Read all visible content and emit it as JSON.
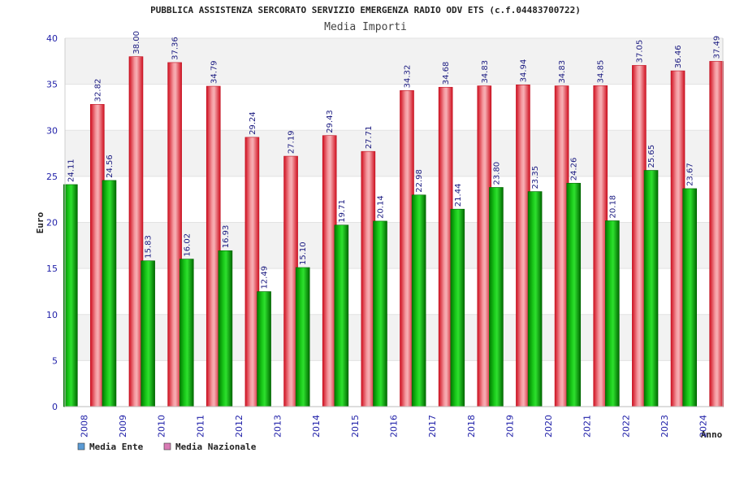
{
  "chart_data": {
    "type": "bar",
    "title": "PUBBLICA ASSISTENZA SERCORATO SERVIZIO EMERGENZA RADIO ODV ETS (c.f.04483700722)",
    "subtitle": "Media Importi",
    "xlabel": "Anno",
    "ylabel": "Euro",
    "ylim": [
      0,
      40
    ],
    "yticks": [
      0,
      5,
      10,
      15,
      20,
      25,
      30,
      35,
      40
    ],
    "grid": true,
    "legend_position": "bottom-left",
    "categories": [
      "2008",
      "2009",
      "2010",
      "2011",
      "2012",
      "2013",
      "2014",
      "2015",
      "2016",
      "2017",
      "2018",
      "2019",
      "2020",
      "2021",
      "2022",
      "2023",
      "2024"
    ],
    "series": [
      {
        "name": "Media Ente",
        "color": "#00aa00",
        "legend_color": "#5b9bd5",
        "values": [
          24.11,
          24.56,
          15.83,
          16.02,
          16.93,
          12.49,
          15.1,
          19.71,
          20.14,
          22.98,
          21.44,
          23.8,
          23.35,
          24.26,
          20.18,
          25.65,
          23.67
        ],
        "labels": [
          "24.11",
          "24.56",
          "15.83",
          "16.02",
          "16.93",
          "12.49",
          "15.10",
          "19.71",
          "20.14",
          "22.98",
          "21.44",
          "23.80",
          "23.35",
          "24.26",
          "20.18",
          "25.65",
          "23.67"
        ]
      },
      {
        "name": "Media Nazionale",
        "color": "#e8202a",
        "legend_color": "#d97bb5",
        "values": [
          32.82,
          38.0,
          37.36,
          34.79,
          29.24,
          27.19,
          29.43,
          27.71,
          34.32,
          34.68,
          34.83,
          34.94,
          34.83,
          34.85,
          37.05,
          36.46,
          37.49
        ],
        "labels": [
          "32.82",
          "38.00",
          "37.36",
          "34.79",
          "29.24",
          "27.19",
          "29.43",
          "27.71",
          "34.32",
          "34.68",
          "34.83",
          "34.94",
          "34.83",
          "34.85",
          "37.05",
          "36.46",
          "37.49"
        ]
      }
    ]
  }
}
